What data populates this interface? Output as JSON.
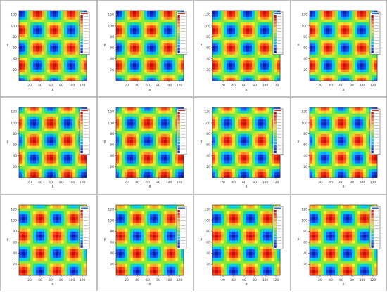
{
  "axes": {
    "x_label": "x",
    "y_label": "y",
    "x_ticks": [
      "20",
      "40",
      "60",
      "80",
      "100",
      "120"
    ],
    "y_ticks": [
      "20",
      "40",
      "60",
      "80",
      "100",
      "120"
    ],
    "xlim": [
      0,
      128
    ],
    "ylim": [
      0,
      128
    ]
  },
  "colormap": {
    "stops": [
      "#0a1ea8",
      "#1e63ff",
      "#00c8ff",
      "#22e07a",
      "#8ee83a",
      "#fff22a",
      "#ffa22a",
      "#ff4a1c",
      "#c80a0a"
    ]
  },
  "panels": [
    {
      "pattern": "stripe",
      "legend_rows": 13,
      "legend_title_color": "#c0392b"
    },
    {
      "pattern": "stripe",
      "legend_rows": 13,
      "legend_title_color": "#c0392b"
    },
    {
      "pattern": "stripe",
      "legend_rows": 13,
      "legend_title_color": "#2a6bc8"
    },
    {
      "pattern": "stripe",
      "legend_rows": 13,
      "legend_title_color": "#2a6bc8"
    },
    {
      "pattern": "stripe_shift",
      "legend_rows": 14,
      "legend_title_color": "#c0392b"
    },
    {
      "pattern": "stripe_shift",
      "legend_rows": 14,
      "legend_title_color": "#c0392b"
    },
    {
      "pattern": "stripe_shift",
      "legend_rows": 14,
      "legend_title_color": "#c0392b"
    },
    {
      "pattern": "stripe_shift",
      "legend_rows": 14,
      "legend_title_color": "#c0392b"
    },
    {
      "pattern": "spots",
      "legend_rows": 13,
      "legend_title_color": "#2a6bc8"
    },
    {
      "pattern": "spots",
      "legend_rows": 13,
      "legend_title_color": "#2a6bc8"
    },
    {
      "pattern": "spots",
      "legend_rows": 13,
      "legend_title_color": "#2a6bc8"
    },
    {
      "pattern": "spots",
      "legend_rows": 13,
      "legend_title_color": "#2a6bc8"
    }
  ]
}
